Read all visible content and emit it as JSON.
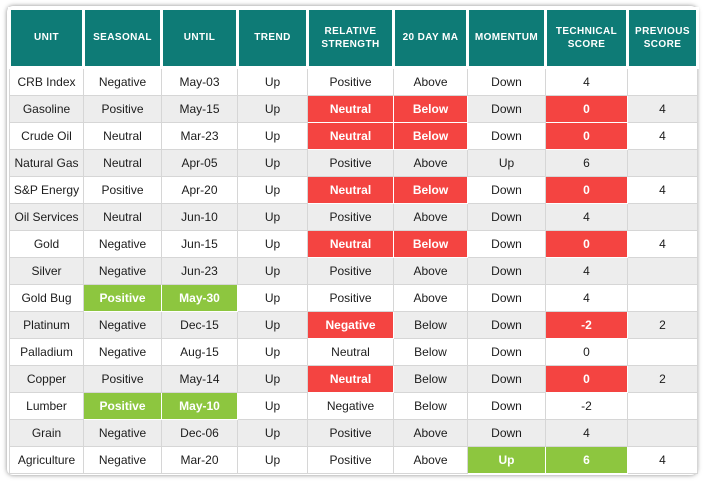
{
  "colors": {
    "header_bg": "#0e7b76",
    "header_text": "#ffffff",
    "red": "#f44441",
    "green": "#8dc63f",
    "row_alt": "#ededed",
    "text": "#1c1c1c"
  },
  "chart_data": {
    "type": "table",
    "columns": [
      "UNIT",
      "SEASONAL",
      "UNTIL",
      "TREND",
      "RELATIVE STRENGTH",
      "20 DAY MA",
      "MOMENTUM",
      "TECHNICAL SCORE",
      "PREVIOUS SCORE"
    ],
    "column_keys": [
      "unit",
      "seasonal",
      "until",
      "trend",
      "relative-strength",
      "20-day-ma",
      "momentum",
      "technical-score",
      "previous-score"
    ],
    "rows": [
      [
        {
          "t": "CRB Index"
        },
        {
          "t": "Negative"
        },
        {
          "t": "May-03"
        },
        {
          "t": "Up"
        },
        {
          "t": "Positive"
        },
        {
          "t": "Above"
        },
        {
          "t": "Down"
        },
        {
          "t": "4"
        },
        {
          "t": ""
        }
      ],
      [
        {
          "t": "Gasoline"
        },
        {
          "t": "Positive"
        },
        {
          "t": "May-15"
        },
        {
          "t": "Up"
        },
        {
          "t": "Neutral",
          "h": "red"
        },
        {
          "t": "Below",
          "h": "red"
        },
        {
          "t": "Down"
        },
        {
          "t": "0",
          "h": "red"
        },
        {
          "t": "4"
        }
      ],
      [
        {
          "t": "Crude Oil"
        },
        {
          "t": "Neutral"
        },
        {
          "t": "Mar-23"
        },
        {
          "t": "Up"
        },
        {
          "t": "Neutral",
          "h": "red"
        },
        {
          "t": "Below",
          "h": "red"
        },
        {
          "t": "Down"
        },
        {
          "t": "0",
          "h": "red"
        },
        {
          "t": "4"
        }
      ],
      [
        {
          "t": "Natural Gas"
        },
        {
          "t": "Neutral"
        },
        {
          "t": "Apr-05"
        },
        {
          "t": "Up"
        },
        {
          "t": "Positive"
        },
        {
          "t": "Above"
        },
        {
          "t": "Up"
        },
        {
          "t": "6"
        },
        {
          "t": ""
        }
      ],
      [
        {
          "t": "S&P Energy"
        },
        {
          "t": "Positive"
        },
        {
          "t": "Apr-20"
        },
        {
          "t": "Up"
        },
        {
          "t": "Neutral",
          "h": "red"
        },
        {
          "t": "Below",
          "h": "red"
        },
        {
          "t": "Down"
        },
        {
          "t": "0",
          "h": "red"
        },
        {
          "t": "4"
        }
      ],
      [
        {
          "t": "Oil Services"
        },
        {
          "t": "Neutral"
        },
        {
          "t": "Jun-10"
        },
        {
          "t": "Up"
        },
        {
          "t": "Positive"
        },
        {
          "t": "Above"
        },
        {
          "t": "Down"
        },
        {
          "t": "4"
        },
        {
          "t": ""
        }
      ],
      [
        {
          "t": "Gold"
        },
        {
          "t": "Negative"
        },
        {
          "t": "Jun-15"
        },
        {
          "t": "Up"
        },
        {
          "t": "Neutral",
          "h": "red"
        },
        {
          "t": "Below",
          "h": "red"
        },
        {
          "t": "Down"
        },
        {
          "t": "0",
          "h": "red"
        },
        {
          "t": "4"
        }
      ],
      [
        {
          "t": "Silver"
        },
        {
          "t": "Negative"
        },
        {
          "t": "Jun-23"
        },
        {
          "t": "Up"
        },
        {
          "t": "Positive"
        },
        {
          "t": "Above"
        },
        {
          "t": "Down"
        },
        {
          "t": "4"
        },
        {
          "t": ""
        }
      ],
      [
        {
          "t": "Gold Bug"
        },
        {
          "t": "Positive",
          "h": "green"
        },
        {
          "t": "May-30",
          "h": "green"
        },
        {
          "t": "Up"
        },
        {
          "t": "Positive"
        },
        {
          "t": "Above"
        },
        {
          "t": "Down"
        },
        {
          "t": "4"
        },
        {
          "t": ""
        }
      ],
      [
        {
          "t": "Platinum"
        },
        {
          "t": "Negative"
        },
        {
          "t": "Dec-15"
        },
        {
          "t": "Up"
        },
        {
          "t": "Negative",
          "h": "red"
        },
        {
          "t": "Below"
        },
        {
          "t": "Down"
        },
        {
          "t": "-2",
          "h": "red"
        },
        {
          "t": "2"
        }
      ],
      [
        {
          "t": "Palladium"
        },
        {
          "t": "Negative"
        },
        {
          "t": "Aug-15"
        },
        {
          "t": "Up"
        },
        {
          "t": "Neutral"
        },
        {
          "t": "Below"
        },
        {
          "t": "Down"
        },
        {
          "t": "0"
        },
        {
          "t": ""
        }
      ],
      [
        {
          "t": "Copper"
        },
        {
          "t": "Positive"
        },
        {
          "t": "May-14"
        },
        {
          "t": "Up"
        },
        {
          "t": "Neutral",
          "h": "red"
        },
        {
          "t": "Below"
        },
        {
          "t": "Down"
        },
        {
          "t": "0",
          "h": "red"
        },
        {
          "t": "2"
        }
      ],
      [
        {
          "t": "Lumber"
        },
        {
          "t": "Positive",
          "h": "green"
        },
        {
          "t": "May-10",
          "h": "green"
        },
        {
          "t": "Up"
        },
        {
          "t": "Negative"
        },
        {
          "t": "Below"
        },
        {
          "t": "Down"
        },
        {
          "t": "-2"
        },
        {
          "t": ""
        }
      ],
      [
        {
          "t": "Grain"
        },
        {
          "t": "Negative"
        },
        {
          "t": "Dec-06"
        },
        {
          "t": "Up"
        },
        {
          "t": "Positive"
        },
        {
          "t": "Above"
        },
        {
          "t": "Down"
        },
        {
          "t": "4"
        },
        {
          "t": ""
        }
      ],
      [
        {
          "t": "Agriculture"
        },
        {
          "t": "Negative"
        },
        {
          "t": "Mar-20"
        },
        {
          "t": "Up"
        },
        {
          "t": "Positive"
        },
        {
          "t": "Above"
        },
        {
          "t": "Up",
          "h": "green"
        },
        {
          "t": "6",
          "h": "green"
        },
        {
          "t": "4"
        }
      ]
    ]
  }
}
